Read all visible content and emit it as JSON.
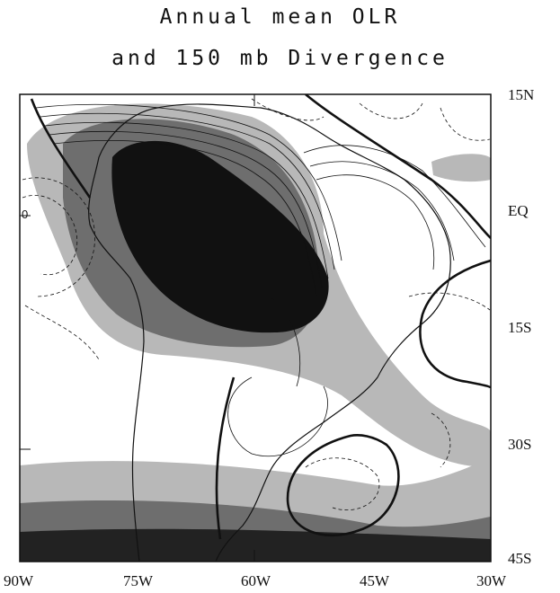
{
  "title": {
    "line1": "Annual mean OLR",
    "line2": "and 150 mb Divergence"
  },
  "lat_labels": [
    "15N",
    "EQ",
    "15S",
    "30S",
    "45S"
  ],
  "lon_labels": [
    "90W",
    "75W",
    "60W",
    "45W",
    "30W"
  ],
  "map": {
    "region": "South America",
    "lon_range": [
      -90,
      -30
    ],
    "lat_range": [
      -45,
      15
    ],
    "contour_label": "0",
    "colors": {
      "shade_light": "#b8b8b8",
      "shade_mid": "#6e6e6e",
      "shade_dark": "#222222",
      "contour": "#111111"
    }
  }
}
